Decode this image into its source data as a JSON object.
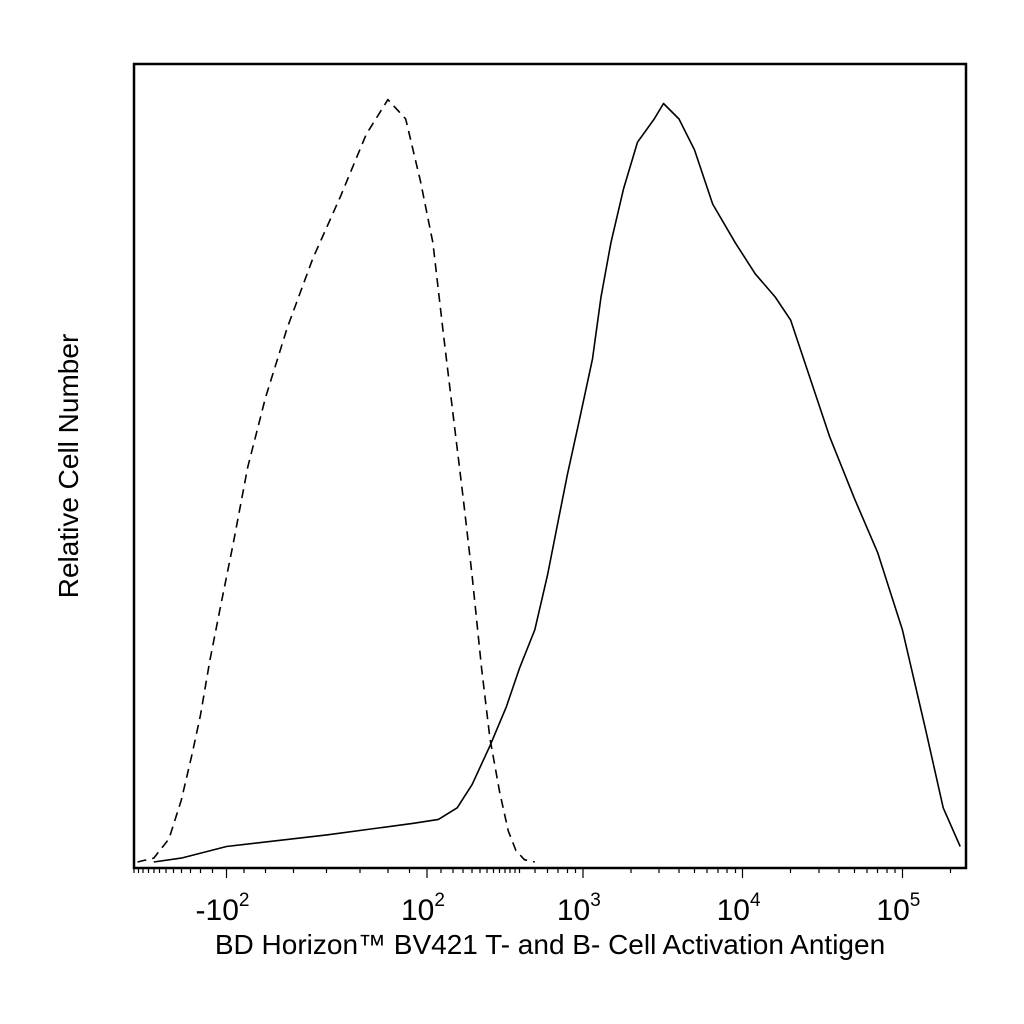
{
  "chart_data": {
    "type": "line",
    "xlabel": "BD Horizon™ BV421 T- and B- Cell Activation Antigen",
    "ylabel": "Relative Cell Number",
    "x_scale": "biexponential",
    "xlim": [
      -400,
      250000
    ],
    "ylim": [
      0,
      100
    ],
    "grid": false,
    "x_ticks": [
      {
        "value": -100,
        "base": "-10",
        "exp": "2"
      },
      {
        "value": 100,
        "base": "10",
        "exp": "2"
      },
      {
        "value": 1000,
        "base": "10",
        "exp": "3"
      },
      {
        "value": 10000,
        "base": "10",
        "exp": "4"
      },
      {
        "value": 100000,
        "base": "10",
        "exp": "5"
      }
    ],
    "series": [
      {
        "style": "dashed",
        "points": [
          [
            -380,
            0
          ],
          [
            -300,
            0.5
          ],
          [
            -240,
            3
          ],
          [
            -200,
            8
          ],
          [
            -170,
            14
          ],
          [
            -150,
            19
          ],
          [
            -130,
            26
          ],
          [
            -110,
            33
          ],
          [
            -90,
            41
          ],
          [
            -70,
            51
          ],
          [
            -50,
            60
          ],
          [
            -30,
            69
          ],
          [
            -10,
            78
          ],
          [
            10,
            86
          ],
          [
            30,
            94
          ],
          [
            50,
            98.5
          ],
          [
            70,
            96
          ],
          [
            90,
            88
          ],
          [
            110,
            80
          ],
          [
            130,
            68
          ],
          [
            150,
            58
          ],
          [
            175,
            47
          ],
          [
            200,
            37
          ],
          [
            230,
            25
          ],
          [
            260,
            16
          ],
          [
            300,
            9
          ],
          [
            340,
            4
          ],
          [
            380,
            1.5
          ],
          [
            430,
            0.3
          ],
          [
            500,
            0
          ]
        ]
      },
      {
        "style": "solid",
        "points": [
          [
            -300,
            0
          ],
          [
            -200,
            0.5
          ],
          [
            -100,
            2
          ],
          [
            0,
            3.5
          ],
          [
            80,
            5
          ],
          [
            120,
            5.5
          ],
          [
            160,
            7
          ],
          [
            200,
            10
          ],
          [
            260,
            15
          ],
          [
            330,
            20
          ],
          [
            400,
            25
          ],
          [
            500,
            30
          ],
          [
            600,
            37
          ],
          [
            700,
            44
          ],
          [
            800,
            50
          ],
          [
            950,
            57
          ],
          [
            1150,
            65
          ],
          [
            1300,
            73
          ],
          [
            1500,
            80
          ],
          [
            1800,
            87
          ],
          [
            2200,
            93
          ],
          [
            2800,
            96
          ],
          [
            3200,
            98
          ],
          [
            4000,
            96
          ],
          [
            5000,
            92
          ],
          [
            6500,
            85
          ],
          [
            9000,
            80
          ],
          [
            12000,
            76
          ],
          [
            16000,
            73
          ],
          [
            20000,
            70
          ],
          [
            25000,
            64
          ],
          [
            35000,
            55
          ],
          [
            50000,
            47
          ],
          [
            70000,
            40
          ],
          [
            100000,
            30
          ],
          [
            140000,
            17
          ],
          [
            180000,
            7
          ],
          [
            230000,
            2
          ]
        ]
      }
    ]
  }
}
